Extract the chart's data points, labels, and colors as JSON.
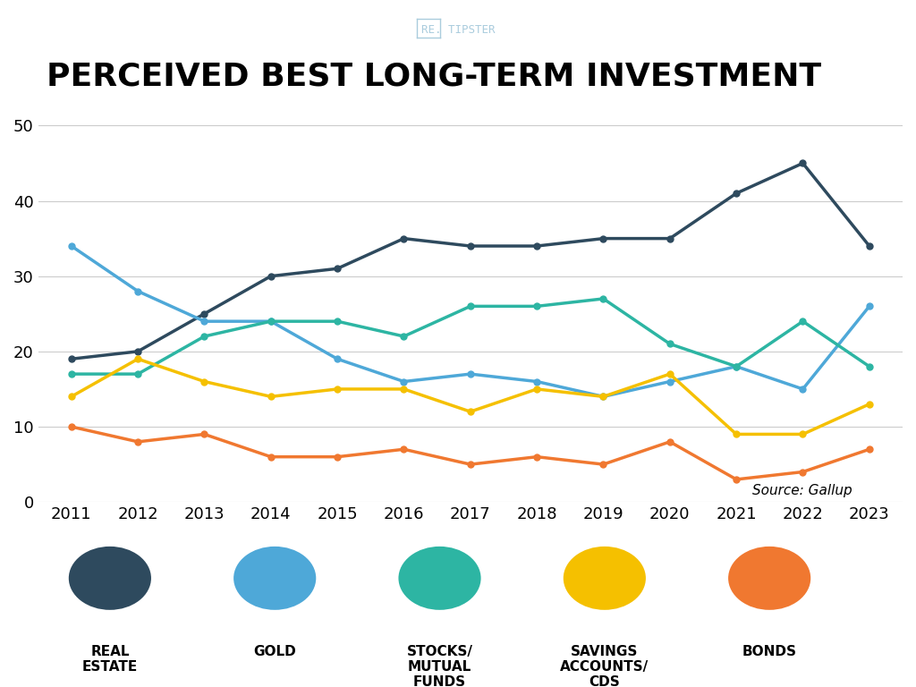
{
  "title": "PERCEIVED BEST LONG-TERM INVESTMENT",
  "source": "Source: Gallup",
  "years": [
    2011,
    2012,
    2013,
    2014,
    2015,
    2016,
    2017,
    2018,
    2019,
    2020,
    2021,
    2022,
    2023
  ],
  "series": {
    "Real Estate": {
      "color": "#2e4a5e",
      "values": [
        19,
        20,
        25,
        30,
        31,
        35,
        34,
        34,
        35,
        35,
        41,
        45,
        34
      ]
    },
    "Gold": {
      "color": "#4ea8d8",
      "values": [
        34,
        28,
        24,
        24,
        19,
        16,
        17,
        16,
        14,
        16,
        18,
        15,
        26
      ]
    },
    "Stocks/Mutual Funds": {
      "color": "#2db5a3",
      "values": [
        17,
        17,
        22,
        24,
        24,
        22,
        26,
        26,
        27,
        21,
        18,
        24,
        18
      ]
    },
    "Savings Accounts/CDs": {
      "color": "#f5c000",
      "values": [
        14,
        19,
        16,
        14,
        15,
        15,
        12,
        15,
        14,
        17,
        9,
        9,
        13
      ]
    },
    "Bonds": {
      "color": "#f07830",
      "values": [
        10,
        8,
        9,
        6,
        6,
        7,
        5,
        6,
        5,
        8,
        3,
        4,
        7
      ]
    }
  },
  "ylim": [
    0,
    52
  ],
  "yticks": [
    0,
    10,
    20,
    30,
    40,
    50
  ],
  "background_color": "#ffffff",
  "grid_color": "#cccccc",
  "legend_labels": [
    "REAL\nESTATE",
    "GOLD",
    "STOCKS/\nMUTUAL\nFUNDS",
    "SAVINGS\nACCOUNTS/\nCDS",
    "BONDS"
  ],
  "legend_colors": [
    "#2e4a5e",
    "#4ea8d8",
    "#2db5a3",
    "#f5c000",
    "#f07830"
  ],
  "logo_text": "RE. TIPSTER",
  "marker": "o",
  "marker_size": 5,
  "line_width": 2.5
}
